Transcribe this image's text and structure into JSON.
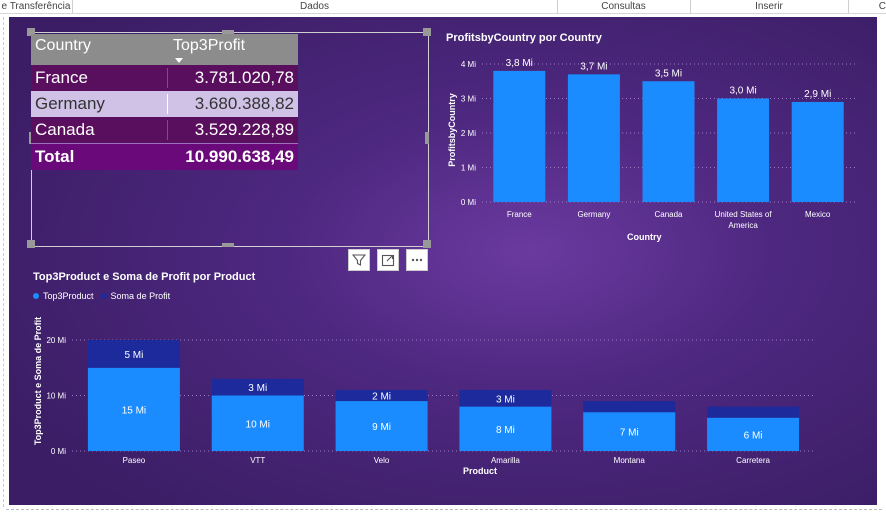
{
  "ribbon": {
    "groups": [
      "e Transferência",
      "Dados",
      "Consultas",
      "Inserir",
      "C"
    ]
  },
  "table": {
    "headers": [
      "Country",
      "Top3Profit"
    ],
    "rows": [
      {
        "country": "France",
        "value": "3.781.020,78"
      },
      {
        "country": "Germany",
        "value": "3.680.388,82"
      },
      {
        "country": "Canada",
        "value": "3.529.228,89"
      }
    ],
    "total_label": "Total",
    "total_value": "10.990.638,49"
  },
  "visual_header": {
    "icons": [
      "filter-icon",
      "focus-mode-icon",
      "more-options-icon"
    ]
  },
  "colors": {
    "bar_primary": "#1a8cff",
    "bar_secondary": "#1c2a9c",
    "table_dark": "#5a0f5e",
    "table_light": "#cfc2e6"
  },
  "chart_data": [
    {
      "type": "bar",
      "title": "ProfitsbyCountry por Country",
      "xlabel": "Country",
      "ylabel": "ProfitsbyCountry",
      "categories": [
        "France",
        "Germany",
        "Canada",
        "United States of America",
        "Mexico"
      ],
      "values": [
        3.8,
        3.7,
        3.5,
        3.0,
        2.9
      ],
      "data_labels": [
        "3,8 Mi",
        "3,7 Mi",
        "3,5 Mi",
        "3,0 Mi",
        "2,9 Mi"
      ],
      "yticks": [
        "0 Mi",
        "1 Mi",
        "2 Mi",
        "3 Mi",
        "4 Mi"
      ],
      "ylim": [
        0,
        4
      ],
      "unit": "Mi",
      "grid": true
    },
    {
      "type": "bar",
      "stacked": true,
      "title": "Top3Product e Soma de Profit por Product",
      "xlabel": "Product",
      "ylabel": "Top3Product e Soma de Profit",
      "categories": [
        "Paseo",
        "VTT",
        "Velo",
        "Amarilla",
        "Montana",
        "Carretera"
      ],
      "series": [
        {
          "name": "Top3Product",
          "values": [
            15,
            10,
            9,
            8,
            7,
            6
          ],
          "labels": [
            "15 Mi",
            "10 Mi",
            "9 Mi",
            "8 Mi",
            "7 Mi",
            "6 Mi"
          ]
        },
        {
          "name": "Soma de Profit",
          "values": [
            5,
            3,
            2,
            3,
            2,
            2
          ],
          "labels": [
            "5 Mi",
            "3 Mi",
            "2 Mi",
            "3 Mi",
            "",
            ""
          ]
        }
      ],
      "yticks": [
        "0 Mi",
        "10 Mi",
        "20 Mi"
      ],
      "ylim": [
        0,
        20
      ],
      "unit": "Mi",
      "legend_position": "top-left",
      "grid": true
    }
  ]
}
